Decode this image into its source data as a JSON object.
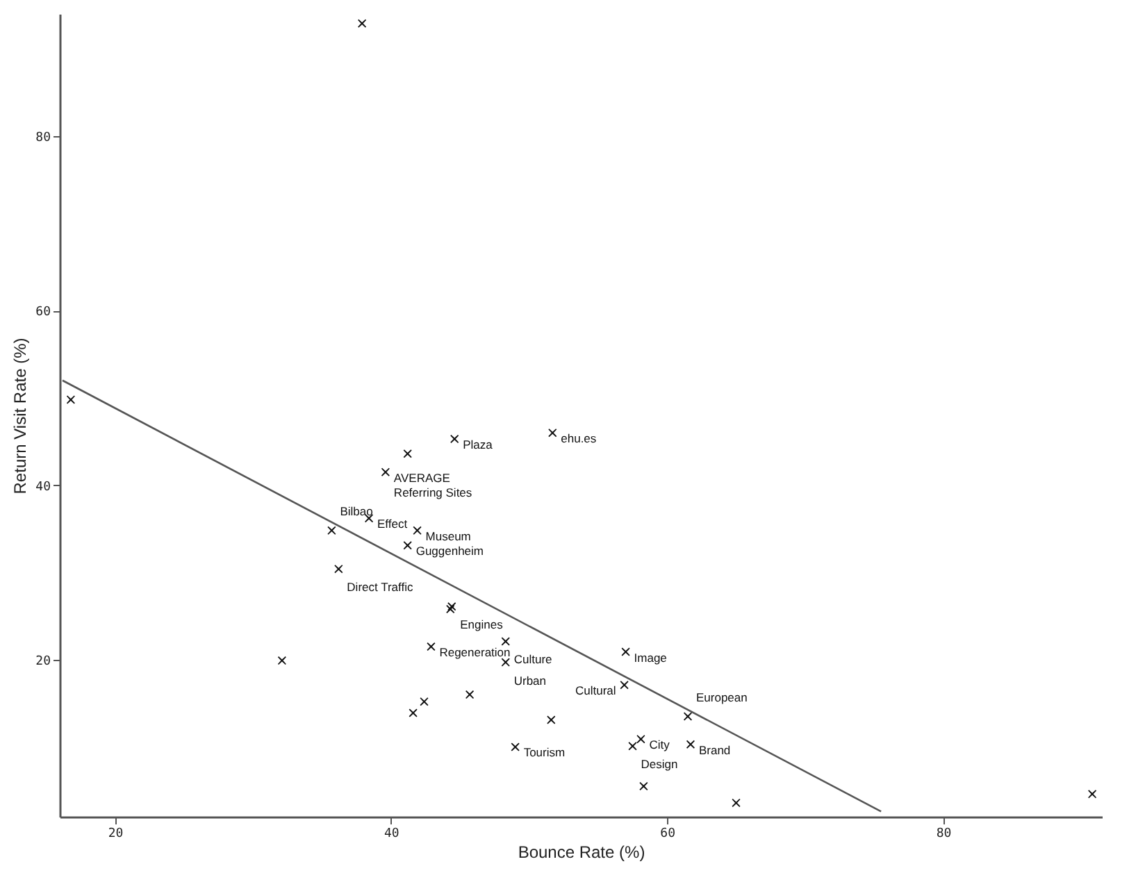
{
  "chart_data": {
    "type": "scatter",
    "xlabel": "Bounce Rate (%)",
    "ylabel": "Return Visit Rate (%)",
    "xlim": [
      16,
      91.5
    ],
    "ylim": [
      2,
      94
    ],
    "xticks": [
      20,
      40,
      60,
      80
    ],
    "yticks": [
      20,
      40,
      60,
      80
    ],
    "series": [
      {
        "color": "#111111",
        "marker": "cross",
        "x": [
          37.9,
          16.8,
          44.6,
          51.7,
          41.2,
          39.6,
          38.4,
          35.7,
          41.9,
          41.2,
          36.2,
          44.3,
          44.4,
          42.9,
          48.3,
          48.3,
          32.1,
          45.7,
          42.4,
          41.6,
          49.0,
          51.6,
          57.0,
          56.9,
          61.5,
          58.1,
          57.5,
          61.7,
          58.3,
          65.0,
          90.8
        ],
        "values": [
          92.9,
          49.8,
          45.3,
          46.0,
          43.6,
          41.5,
          36.2,
          34.8,
          34.8,
          33.1,
          30.4,
          25.8,
          26.1,
          21.5,
          22.1,
          19.7,
          19.9,
          16.0,
          15.2,
          13.9,
          10.0,
          13.1,
          20.9,
          17.1,
          13.5,
          10.9,
          10.1,
          10.3,
          5.5,
          3.6,
          4.6
        ],
        "value_labels": [
          null,
          null,
          "Plaza",
          "ehu.es",
          null,
          "AVERAGE\nReferring Sites",
          "Effect",
          "Bilbao",
          "Museum",
          "Guggenheim",
          "Direct Traffic",
          null,
          "Engines",
          "Regeneration",
          "Culture",
          "Urban",
          null,
          null,
          null,
          null,
          "Tourism",
          null,
          "Image",
          "Cultural",
          "European",
          "City",
          "Design",
          "Brand",
          null,
          null,
          null
        ]
      },
      {
        "type": "line",
        "color": "#555555",
        "x": [
          16.2,
          75.5
        ],
        "values": [
          52.0,
          2.6
        ]
      }
    ]
  }
}
